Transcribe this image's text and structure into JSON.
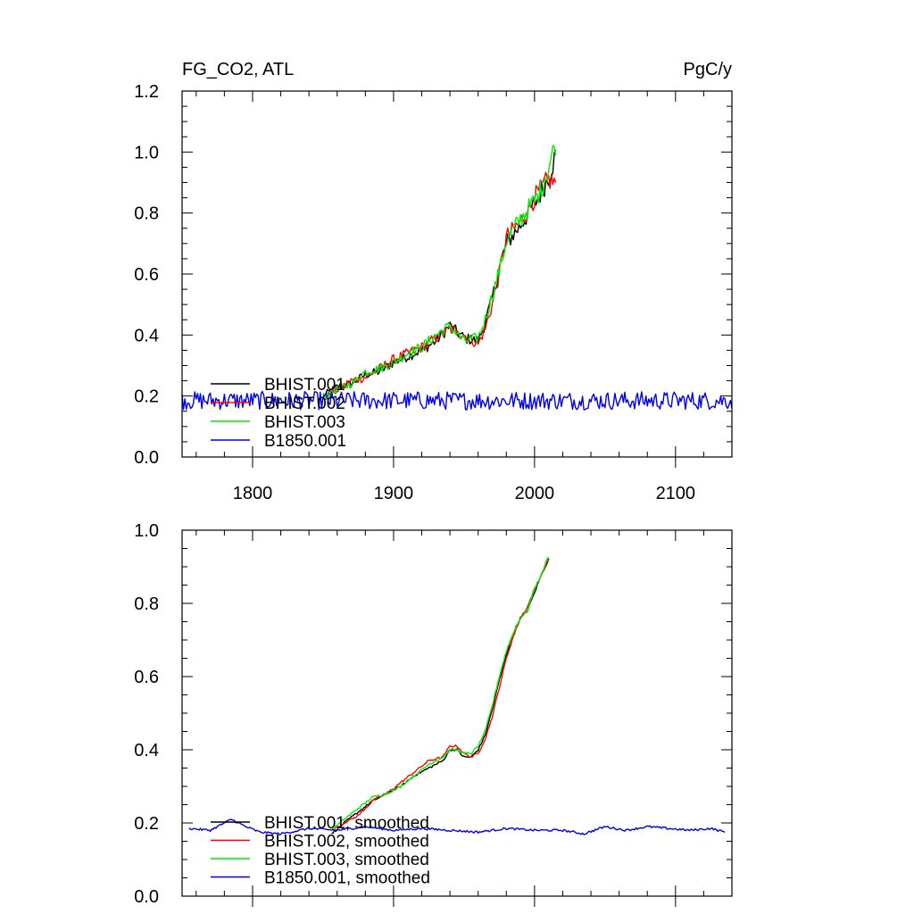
{
  "chart_data": [
    {
      "type": "line",
      "title_left": "FG_CO2, ATL",
      "title_right": "PgC/y",
      "xlim": [
        1750,
        2140
      ],
      "ylim": [
        0.0,
        1.2
      ],
      "xticks": [
        1800,
        1900,
        2000,
        2100
      ],
      "xtick_labels": [
        "1800",
        "1900",
        "2000",
        "2100"
      ],
      "yticks": [
        0.0,
        0.2,
        0.4,
        0.6,
        0.8,
        1.0,
        1.2
      ],
      "ytick_labels": [
        "0.0",
        "0.2",
        "0.4",
        "0.6",
        "0.8",
        "1.0",
        "1.2"
      ],
      "legend_position": "bottom-left",
      "series": [
        {
          "name": "BHIST.001",
          "color": "#000000",
          "x": [
            1850,
            1860,
            1870,
            1880,
            1890,
            1900,
            1910,
            1920,
            1930,
            1940,
            1950,
            1960,
            1965,
            1970,
            1975,
            1980,
            1990,
            2000,
            2005,
            2010,
            2015
          ],
          "y": [
            0.2,
            0.23,
            0.24,
            0.27,
            0.28,
            0.31,
            0.33,
            0.35,
            0.38,
            0.43,
            0.39,
            0.38,
            0.44,
            0.52,
            0.62,
            0.7,
            0.76,
            0.83,
            0.87,
            0.92,
            0.99
          ]
        },
        {
          "name": "BHIST.002",
          "color": "#ff0000",
          "x": [
            1850,
            1860,
            1870,
            1880,
            1890,
            1900,
            1910,
            1920,
            1930,
            1940,
            1950,
            1960,
            1965,
            1970,
            1975,
            1980,
            1990,
            2000,
            2005,
            2010,
            2015
          ],
          "y": [
            0.19,
            0.22,
            0.25,
            0.26,
            0.29,
            0.32,
            0.34,
            0.36,
            0.39,
            0.42,
            0.4,
            0.37,
            0.42,
            0.5,
            0.6,
            0.72,
            0.77,
            0.85,
            0.88,
            0.91,
            0.9
          ]
        },
        {
          "name": "BHIST.003",
          "color": "#00ee00",
          "x": [
            1850,
            1860,
            1870,
            1880,
            1890,
            1900,
            1910,
            1920,
            1930,
            1940,
            1950,
            1960,
            1965,
            1970,
            1975,
            1980,
            1990,
            2000,
            2005,
            2010,
            2015
          ],
          "y": [
            0.2,
            0.22,
            0.24,
            0.28,
            0.29,
            0.31,
            0.34,
            0.36,
            0.4,
            0.43,
            0.38,
            0.39,
            0.45,
            0.53,
            0.61,
            0.71,
            0.78,
            0.84,
            0.88,
            0.95,
            1.03
          ]
        },
        {
          "name": "B1850.001",
          "color": "#0000ee",
          "x": [
            1750,
            2140
          ],
          "y": [
            0.185,
            0.185
          ],
          "noise": 0.03
        }
      ]
    },
    {
      "type": "line",
      "xlim": [
        1750,
        2140
      ],
      "ylim": [
        0.0,
        1.0
      ],
      "xticks": [
        1800,
        1900,
        2000,
        2100
      ],
      "yticks": [
        0.0,
        0.2,
        0.4,
        0.6,
        0.8,
        1.0
      ],
      "ytick_labels": [
        "0.0",
        "0.2",
        "0.4",
        "0.6",
        "0.8",
        "1.0"
      ],
      "legend_position": "bottom-left",
      "series": [
        {
          "name": "BHIST.001, smoothed",
          "color": "#000000",
          "x": [
            1856,
            1865,
            1875,
            1885,
            1895,
            1905,
            1915,
            1925,
            1935,
            1940,
            1945,
            1950,
            1955,
            1960,
            1965,
            1970,
            1975,
            1980,
            1985,
            1990,
            1995,
            2000,
            2005,
            2010
          ],
          "y": [
            0.17,
            0.2,
            0.23,
            0.26,
            0.28,
            0.3,
            0.33,
            0.35,
            0.37,
            0.4,
            0.4,
            0.38,
            0.38,
            0.4,
            0.44,
            0.51,
            0.59,
            0.66,
            0.72,
            0.76,
            0.78,
            0.83,
            0.88,
            0.92
          ]
        },
        {
          "name": "BHIST.002, smoothed",
          "color": "#ff0000",
          "x": [
            1856,
            1865,
            1875,
            1885,
            1895,
            1905,
            1915,
            1925,
            1935,
            1940,
            1945,
            1950,
            1955,
            1960,
            1965,
            1970,
            1975,
            1980,
            1985,
            1990,
            1995,
            2000,
            2005,
            2010
          ],
          "y": [
            0.18,
            0.2,
            0.22,
            0.26,
            0.28,
            0.31,
            0.34,
            0.37,
            0.38,
            0.41,
            0.41,
            0.39,
            0.38,
            0.39,
            0.43,
            0.49,
            0.57,
            0.65,
            0.71,
            0.76,
            0.79,
            0.84,
            0.88,
            0.92
          ]
        },
        {
          "name": "BHIST.003, smoothed",
          "color": "#00ee00",
          "x": [
            1856,
            1865,
            1875,
            1885,
            1895,
            1905,
            1915,
            1925,
            1935,
            1940,
            1945,
            1950,
            1955,
            1960,
            1965,
            1970,
            1975,
            1980,
            1985,
            1990,
            1995,
            2000,
            2005,
            2010
          ],
          "y": [
            0.18,
            0.21,
            0.24,
            0.27,
            0.28,
            0.3,
            0.33,
            0.36,
            0.38,
            0.4,
            0.4,
            0.39,
            0.39,
            0.41,
            0.45,
            0.52,
            0.6,
            0.67,
            0.72,
            0.76,
            0.78,
            0.84,
            0.88,
            0.93
          ]
        },
        {
          "name": "B1850.001, smoothed",
          "color": "#0000ee",
          "x": [
            1755,
            1770,
            1785,
            1795,
            1805,
            1820,
            1840,
            1860,
            1880,
            1900,
            1920,
            1940,
            1960,
            1980,
            2000,
            2020,
            2035,
            2050,
            2065,
            2080,
            2095,
            2110,
            2125,
            2135
          ],
          "y": [
            0.185,
            0.18,
            0.21,
            0.19,
            0.175,
            0.17,
            0.185,
            0.18,
            0.19,
            0.18,
            0.185,
            0.18,
            0.175,
            0.185,
            0.18,
            0.18,
            0.17,
            0.19,
            0.18,
            0.19,
            0.185,
            0.18,
            0.185,
            0.175
          ]
        }
      ]
    }
  ]
}
